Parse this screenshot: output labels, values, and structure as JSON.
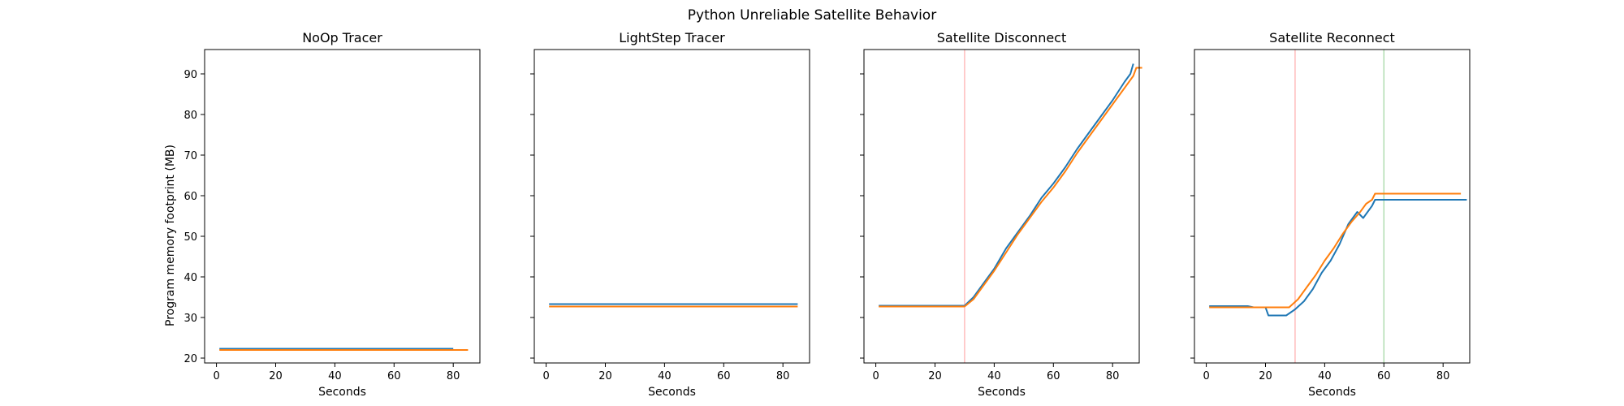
{
  "title": "Python Unreliable Satellite Behavior",
  "ylabel": "Program memory footprint (MB)",
  "colors": {
    "series_a": "#1f77b4",
    "series_b": "#ff7f0e",
    "vline_red": "#ffb3b3",
    "vline_green": "#a6d8a6"
  },
  "chart_data": [
    {
      "type": "line",
      "title": "NoOp Tracer",
      "xlabel": "Seconds",
      "xlim": [
        -4,
        89
      ],
      "ylim": [
        18.8,
        96
      ],
      "xticks": [
        "0",
        "20",
        "40",
        "60",
        "80"
      ],
      "yticks": [
        "20",
        "30",
        "40",
        "50",
        "60",
        "70",
        "80",
        "90"
      ],
      "vlines": [],
      "series": [
        {
          "color": "series_a",
          "points": [
            [
              1,
              22.3
            ],
            [
              80,
              22.3
            ]
          ]
        },
        {
          "color": "series_b",
          "points": [
            [
              1,
              22.0
            ],
            [
              85,
              22.0
            ]
          ]
        }
      ]
    },
    {
      "type": "line",
      "title": "LightStep Tracer",
      "xlabel": "Seconds",
      "xlim": [
        -4,
        89
      ],
      "ylim": [
        18.8,
        96
      ],
      "xticks": [
        "0",
        "20",
        "40",
        "60",
        "80"
      ],
      "yticks": [],
      "vlines": [],
      "series": [
        {
          "color": "series_a",
          "points": [
            [
              1,
              33.3
            ],
            [
              85,
              33.3
            ]
          ]
        },
        {
          "color": "series_b",
          "points": [
            [
              1,
              32.7
            ],
            [
              85,
              32.7
            ]
          ]
        }
      ]
    },
    {
      "type": "line",
      "title": "Satellite Disconnect",
      "xlabel": "Seconds",
      "xlim": [
        -4,
        89
      ],
      "ylim": [
        18.8,
        96
      ],
      "xticks": [
        "0",
        "20",
        "40",
        "60",
        "80"
      ],
      "yticks": [],
      "vlines": [
        {
          "x": 30,
          "color": "vline_red"
        }
      ],
      "series": [
        {
          "color": "series_a",
          "points": [
            [
              1,
              32.9
            ],
            [
              30,
              32.9
            ],
            [
              33,
              35
            ],
            [
              36,
              38
            ],
            [
              40,
              42
            ],
            [
              44,
              47
            ],
            [
              48,
              51
            ],
            [
              52,
              55
            ],
            [
              56,
              59.5
            ],
            [
              60,
              63
            ],
            [
              64,
              67
            ],
            [
              68,
              71.5
            ],
            [
              72,
              75.5
            ],
            [
              76,
              79.5
            ],
            [
              80,
              83.5
            ],
            [
              84,
              88
            ],
            [
              86,
              90
            ],
            [
              87,
              92.5
            ]
          ]
        },
        {
          "color": "series_b",
          "points": [
            [
              1,
              32.7
            ],
            [
              30,
              32.7
            ],
            [
              33,
              34.5
            ],
            [
              36,
              37.5
            ],
            [
              40,
              41.5
            ],
            [
              44,
              46
            ],
            [
              48,
              50.5
            ],
            [
              52,
              54.5
            ],
            [
              56,
              58.5
            ],
            [
              60,
              62
            ],
            [
              64,
              66
            ],
            [
              68,
              70.5
            ],
            [
              72,
              74.5
            ],
            [
              76,
              78.5
            ],
            [
              80,
              82.5
            ],
            [
              84,
              86.5
            ],
            [
              87,
              89.5
            ],
            [
              88,
              91.5
            ],
            [
              90,
              91.5
            ]
          ]
        }
      ]
    },
    {
      "type": "line",
      "title": "Satellite Reconnect",
      "xlabel": "Seconds",
      "xlim": [
        -4,
        89
      ],
      "ylim": [
        18.8,
        96
      ],
      "xticks": [
        "0",
        "20",
        "40",
        "60",
        "80"
      ],
      "yticks": [],
      "vlines": [
        {
          "x": 30,
          "color": "vline_red"
        },
        {
          "x": 60,
          "color": "vline_green"
        }
      ],
      "series": [
        {
          "color": "series_a",
          "points": [
            [
              1,
              32.8
            ],
            [
              14,
              32.8
            ],
            [
              16,
              32.5
            ],
            [
              20,
              32.5
            ],
            [
              21,
              30.5
            ],
            [
              27,
              30.5
            ],
            [
              30,
              32
            ],
            [
              33,
              34
            ],
            [
              36,
              37
            ],
            [
              39,
              41
            ],
            [
              42,
              44
            ],
            [
              45,
              48
            ],
            [
              48,
              53
            ],
            [
              51,
              56
            ],
            [
              53,
              54.5
            ],
            [
              56,
              57.5
            ],
            [
              57,
              59
            ],
            [
              88,
              59
            ]
          ]
        },
        {
          "color": "series_b",
          "points": [
            [
              1,
              32.5
            ],
            [
              28,
              32.5
            ],
            [
              31,
              34.5
            ],
            [
              34,
              37.5
            ],
            [
              37,
              40.5
            ],
            [
              40,
              44
            ],
            [
              43,
              47
            ],
            [
              46,
              50.5
            ],
            [
              49,
              53.5
            ],
            [
              52,
              56
            ],
            [
              54,
              58
            ],
            [
              56,
              59
            ],
            [
              57,
              60.5
            ],
            [
              86,
              60.5
            ]
          ]
        }
      ]
    }
  ]
}
